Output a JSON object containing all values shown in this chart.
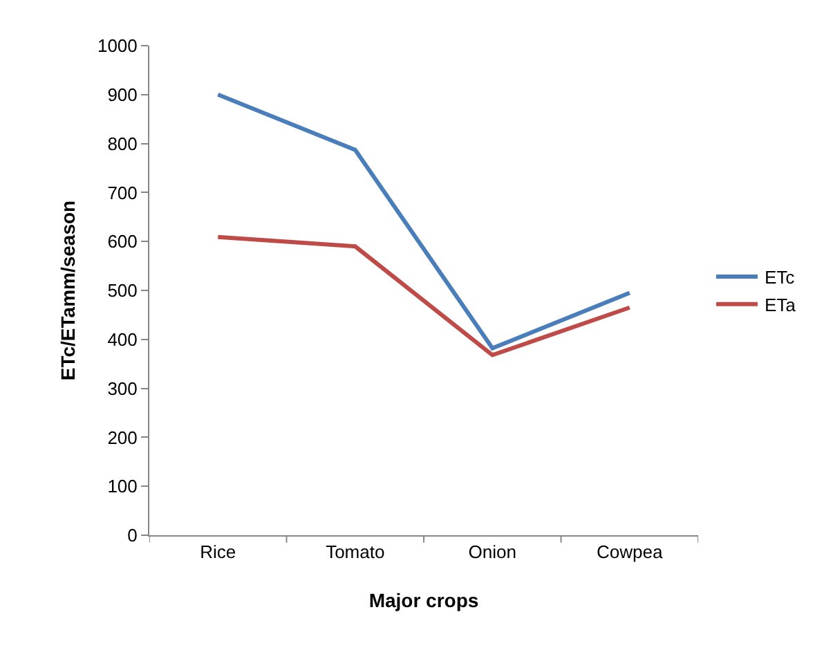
{
  "chart_data": {
    "type": "line",
    "xlabel": "Major crops",
    "ylabel": "ETc/ETamm/season",
    "categories": [
      "Rice",
      "Tomato",
      "Onion",
      "Cowpea"
    ],
    "series": [
      {
        "name": "ETc",
        "color": "#4a7ebb",
        "values": [
          900,
          787,
          382,
          495
        ]
      },
      {
        "name": "ETa",
        "color": "#be4b48",
        "values": [
          609,
          590,
          368,
          465
        ]
      }
    ],
    "ylim": [
      0,
      1000
    ],
    "yticks": [
      0,
      100,
      200,
      300,
      400,
      500,
      600,
      700,
      800,
      900,
      1000
    ],
    "grid": false,
    "legend": "right",
    "marker": "none",
    "line_style": "solid"
  }
}
